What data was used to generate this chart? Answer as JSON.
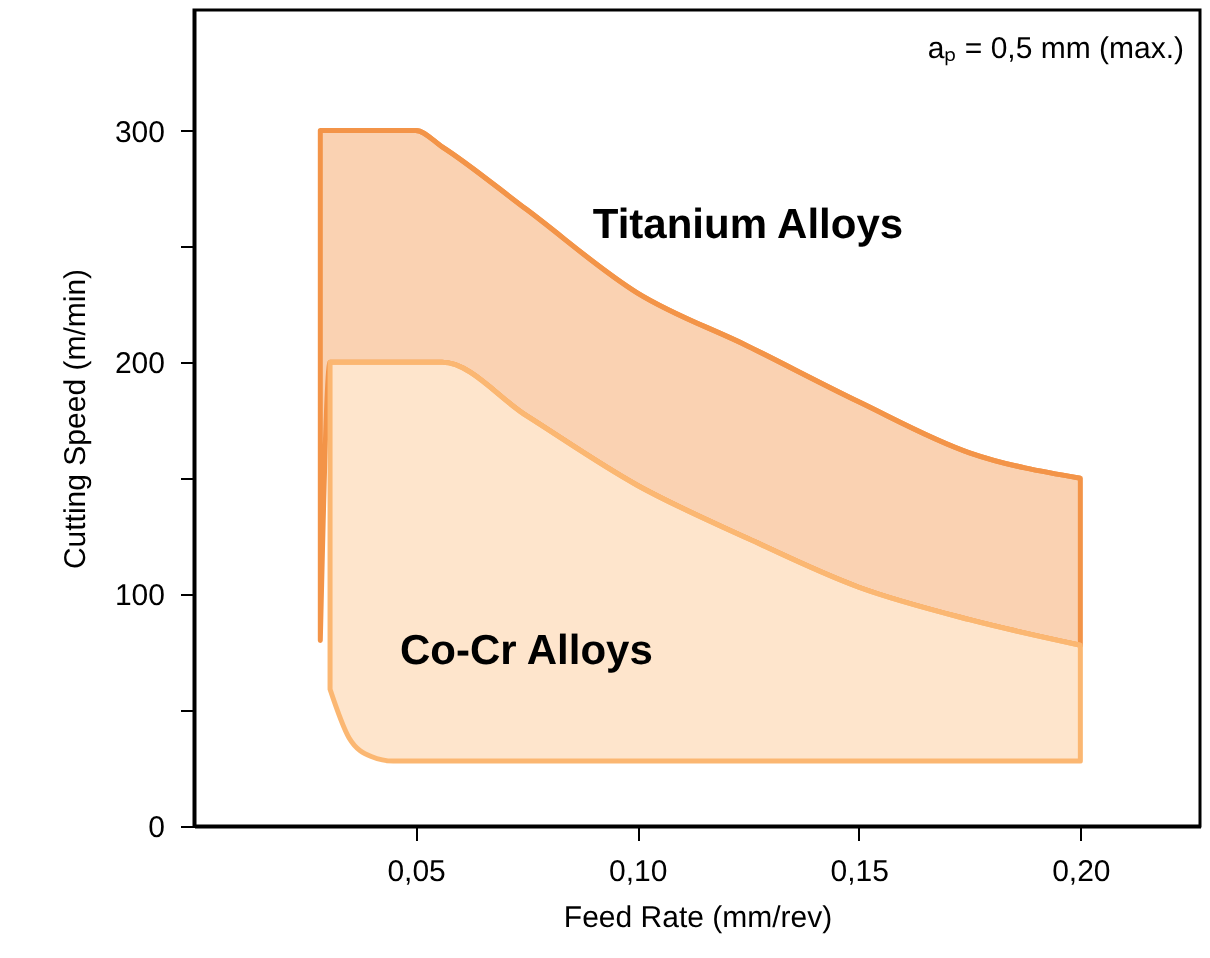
{
  "chart_data": {
    "type": "line",
    "xlabel": "Feed Rate (mm/rev)",
    "ylabel": "Cutting Speed (m/min)",
    "annotations": [
      "aₚ = 0,5 mm (max.)"
    ],
    "xlim": [
      0,
      0.227
    ],
    "ylim": [
      0,
      352
    ],
    "xticks": [
      {
        "value": 0.05,
        "label": "0,05"
      },
      {
        "value": 0.1,
        "label": "0,10"
      },
      {
        "value": 0.15,
        "label": "0,15"
      },
      {
        "value": 0.2,
        "label": "0,20"
      }
    ],
    "yticks": [
      0,
      {
        "value": 50,
        "label": null
      },
      100,
      {
        "value": 150,
        "label": null
      },
      200,
      {
        "value": 250,
        "label": null
      },
      300
    ],
    "grid": false,
    "series": [
      {
        "name": "Titanium Alloys",
        "color": "#f39448",
        "x": [
          0.0285,
          0.0307,
          0.05,
          0.056,
          0.075,
          0.1,
          0.125,
          0.15,
          0.175,
          0.2
        ],
        "values": [
          300,
          300,
          300,
          293,
          266,
          230,
          207,
          183,
          161,
          150
        ],
        "upper": [
          300,
          300,
          300,
          293,
          266,
          230,
          207,
          183,
          161,
          150
        ],
        "lower": [
          80,
          200,
          200,
          200,
          177,
          147,
          124,
          103,
          89,
          78
        ]
      },
      {
        "name": "Co-Cr Alloys",
        "color": "#fbb772",
        "x": [
          0.0307,
          0.035,
          0.04,
          0.045,
          0.056,
          0.075,
          0.1,
          0.125,
          0.15,
          0.175,
          0.2
        ],
        "values": [
          200,
          200,
          200,
          200,
          200,
          177,
          147,
          124,
          103,
          89,
          78
        ],
        "upper": [
          200,
          200,
          200,
          200,
          200,
          177,
          147,
          124,
          103,
          89,
          78
        ],
        "lower": [
          59,
          38,
          30,
          28,
          28,
          28,
          28,
          28,
          28,
          28,
          28
        ]
      }
    ]
  }
}
